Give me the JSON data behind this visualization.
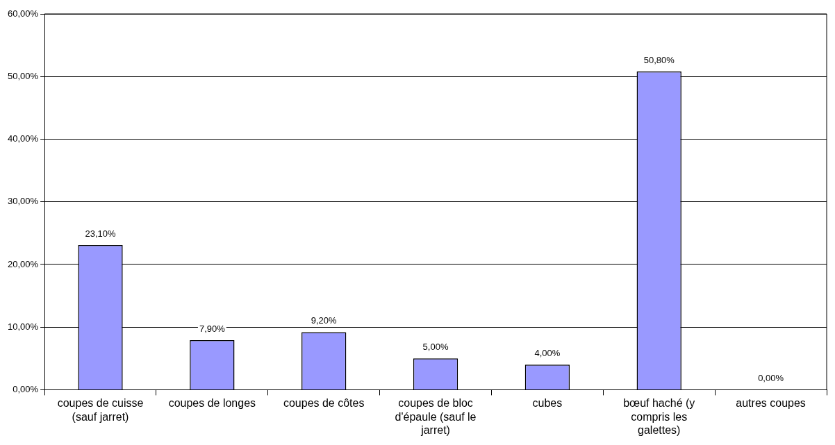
{
  "chart_data": {
    "type": "bar",
    "categories": [
      "coupes de cuisse (sauf jarret)",
      "coupes de longes",
      "coupes de côtes",
      "coupes de bloc d'épaule (sauf le jarret)",
      "cubes",
      "bœuf haché (y compris les galettes)",
      "autres coupes"
    ],
    "values": [
      23.1,
      7.9,
      9.2,
      5.0,
      4.0,
      50.8,
      0.0
    ],
    "value_labels": [
      "23,10%",
      "7,90%",
      "9,20%",
      "5,00%",
      "4,00%",
      "50,80%",
      "0,00%"
    ],
    "color": "#9999ff",
    "ylim": [
      0,
      60
    ],
    "yticks": [
      {
        "value": 0,
        "label": "0,00%"
      },
      {
        "value": 10,
        "label": "10,00%"
      },
      {
        "value": 20,
        "label": "20,00%"
      },
      {
        "value": 30,
        "label": "30,00%"
      },
      {
        "value": 40,
        "label": "40,00%"
      },
      {
        "value": 50,
        "label": "50,00%"
      },
      {
        "value": 60,
        "label": "60,00%"
      }
    ],
    "grid": "y",
    "legend": false
  }
}
